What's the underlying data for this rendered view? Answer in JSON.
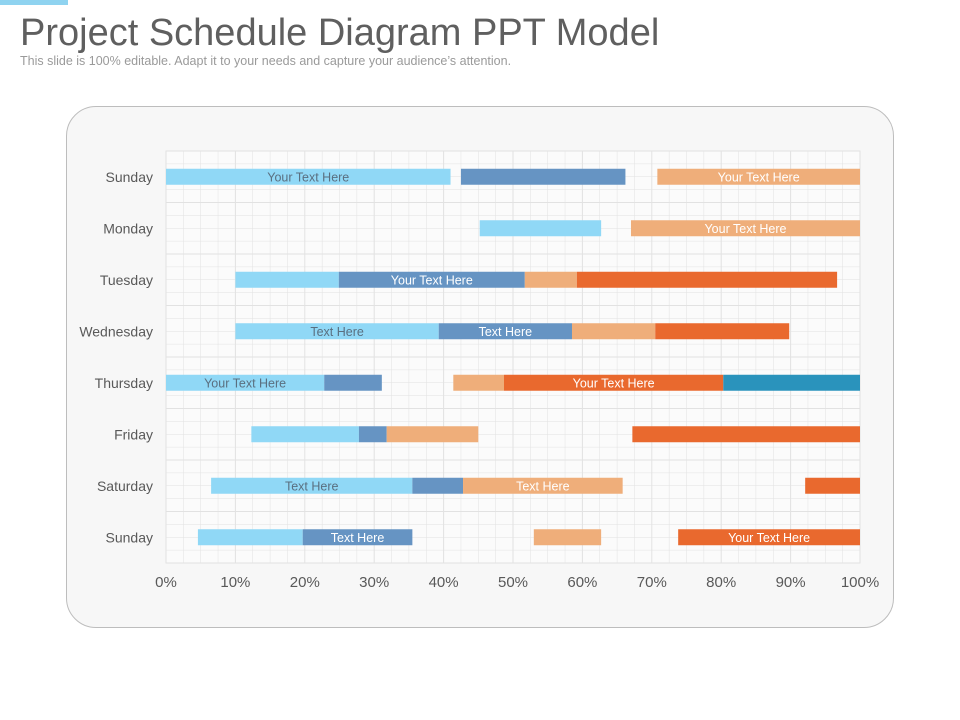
{
  "slide": {
    "title": "Project Schedule Diagram PPT Model",
    "subtitle": "This slide is 100% editable. Adapt it to your needs and capture your audience’s attention."
  },
  "colors": {
    "accent": "#8fd3f0",
    "light_blue": "#90d8f6",
    "steel_blue": "#6694c3",
    "peach": "#efae7a",
    "orange": "#e9692e",
    "teal": "#2a93bc",
    "panel_bg": "#f7f7f7",
    "grid": "#e2e2e2"
  },
  "chart_data": {
    "type": "bar",
    "orientation": "horizontal-stacked-gantt",
    "xlim": [
      0,
      100
    ],
    "x_ticks": [
      "0%",
      "10%",
      "20%",
      "30%",
      "40%",
      "50%",
      "60%",
      "70%",
      "80%",
      "90%",
      "100%"
    ],
    "grid": true,
    "categories": [
      "Sunday",
      "Monday",
      "Tuesday",
      "Wednesday",
      "Thursday",
      "Friday",
      "Saturday",
      "Sunday"
    ],
    "rows": [
      {
        "category": "Sunday",
        "segments": [
          {
            "start": 0,
            "end": 41,
            "color": "light_blue",
            "label": "Your Text Here"
          },
          {
            "start": 42.5,
            "end": 66.2,
            "color": "steel_blue",
            "label": ""
          },
          {
            "start": 70.8,
            "end": 100,
            "color": "peach",
            "label": "Your Text Here"
          }
        ]
      },
      {
        "category": "Monday",
        "segments": [
          {
            "start": 45.2,
            "end": 62.7,
            "color": "light_blue",
            "label": ""
          },
          {
            "start": 67,
            "end": 100,
            "color": "peach",
            "label": "Your Text Here"
          }
        ]
      },
      {
        "category": "Tuesday",
        "segments": [
          {
            "start": 10,
            "end": 24.9,
            "color": "light_blue",
            "label": ""
          },
          {
            "start": 24.9,
            "end": 51.7,
            "color": "steel_blue",
            "label": "Your Text Here"
          },
          {
            "start": 51.7,
            "end": 59.2,
            "color": "peach",
            "label": ""
          },
          {
            "start": 59.2,
            "end": 96.7,
            "color": "orange",
            "label": ""
          }
        ]
      },
      {
        "category": "Wednesday",
        "segments": [
          {
            "start": 10,
            "end": 39.3,
            "color": "light_blue",
            "label": "Text Here"
          },
          {
            "start": 39.3,
            "end": 58.5,
            "color": "steel_blue",
            "label": "Text Here"
          },
          {
            "start": 58.5,
            "end": 70.5,
            "color": "peach",
            "label": ""
          },
          {
            "start": 70.5,
            "end": 89.8,
            "color": "orange",
            "label": ""
          }
        ]
      },
      {
        "category": "Thursday",
        "segments": [
          {
            "start": 0,
            "end": 22.8,
            "color": "light_blue",
            "label": "Your Text Here"
          },
          {
            "start": 22.8,
            "end": 31.1,
            "color": "steel_blue",
            "label": ""
          },
          {
            "start": 41.4,
            "end": 48.7,
            "color": "peach",
            "label": ""
          },
          {
            "start": 48.7,
            "end": 80.3,
            "color": "orange",
            "label": "Your Text Here"
          },
          {
            "start": 80.3,
            "end": 100,
            "color": "teal",
            "label": ""
          }
        ]
      },
      {
        "category": "Friday",
        "segments": [
          {
            "start": 12.3,
            "end": 27.8,
            "color": "light_blue",
            "label": ""
          },
          {
            "start": 27.8,
            "end": 31.8,
            "color": "steel_blue",
            "label": ""
          },
          {
            "start": 31.8,
            "end": 45,
            "color": "peach",
            "label": ""
          },
          {
            "start": 67.2,
            "end": 100,
            "color": "orange",
            "label": ""
          }
        ]
      },
      {
        "category": "Saturday",
        "segments": [
          {
            "start": 6.5,
            "end": 35.5,
            "color": "light_blue",
            "label": "Text Here"
          },
          {
            "start": 35.5,
            "end": 42.8,
            "color": "steel_blue",
            "label": ""
          },
          {
            "start": 42.8,
            "end": 65.8,
            "color": "peach",
            "label": "Text Here"
          },
          {
            "start": 92.1,
            "end": 100,
            "color": "orange",
            "label": ""
          }
        ]
      },
      {
        "category": "Sunday",
        "segments": [
          {
            "start": 4.6,
            "end": 19.7,
            "color": "light_blue",
            "label": ""
          },
          {
            "start": 19.7,
            "end": 35.5,
            "color": "steel_blue",
            "label": "Text Here"
          },
          {
            "start": 53,
            "end": 62.7,
            "color": "peach",
            "label": ""
          },
          {
            "start": 73.8,
            "end": 100,
            "color": "orange",
            "label": "Your Text Here"
          }
        ]
      }
    ]
  }
}
